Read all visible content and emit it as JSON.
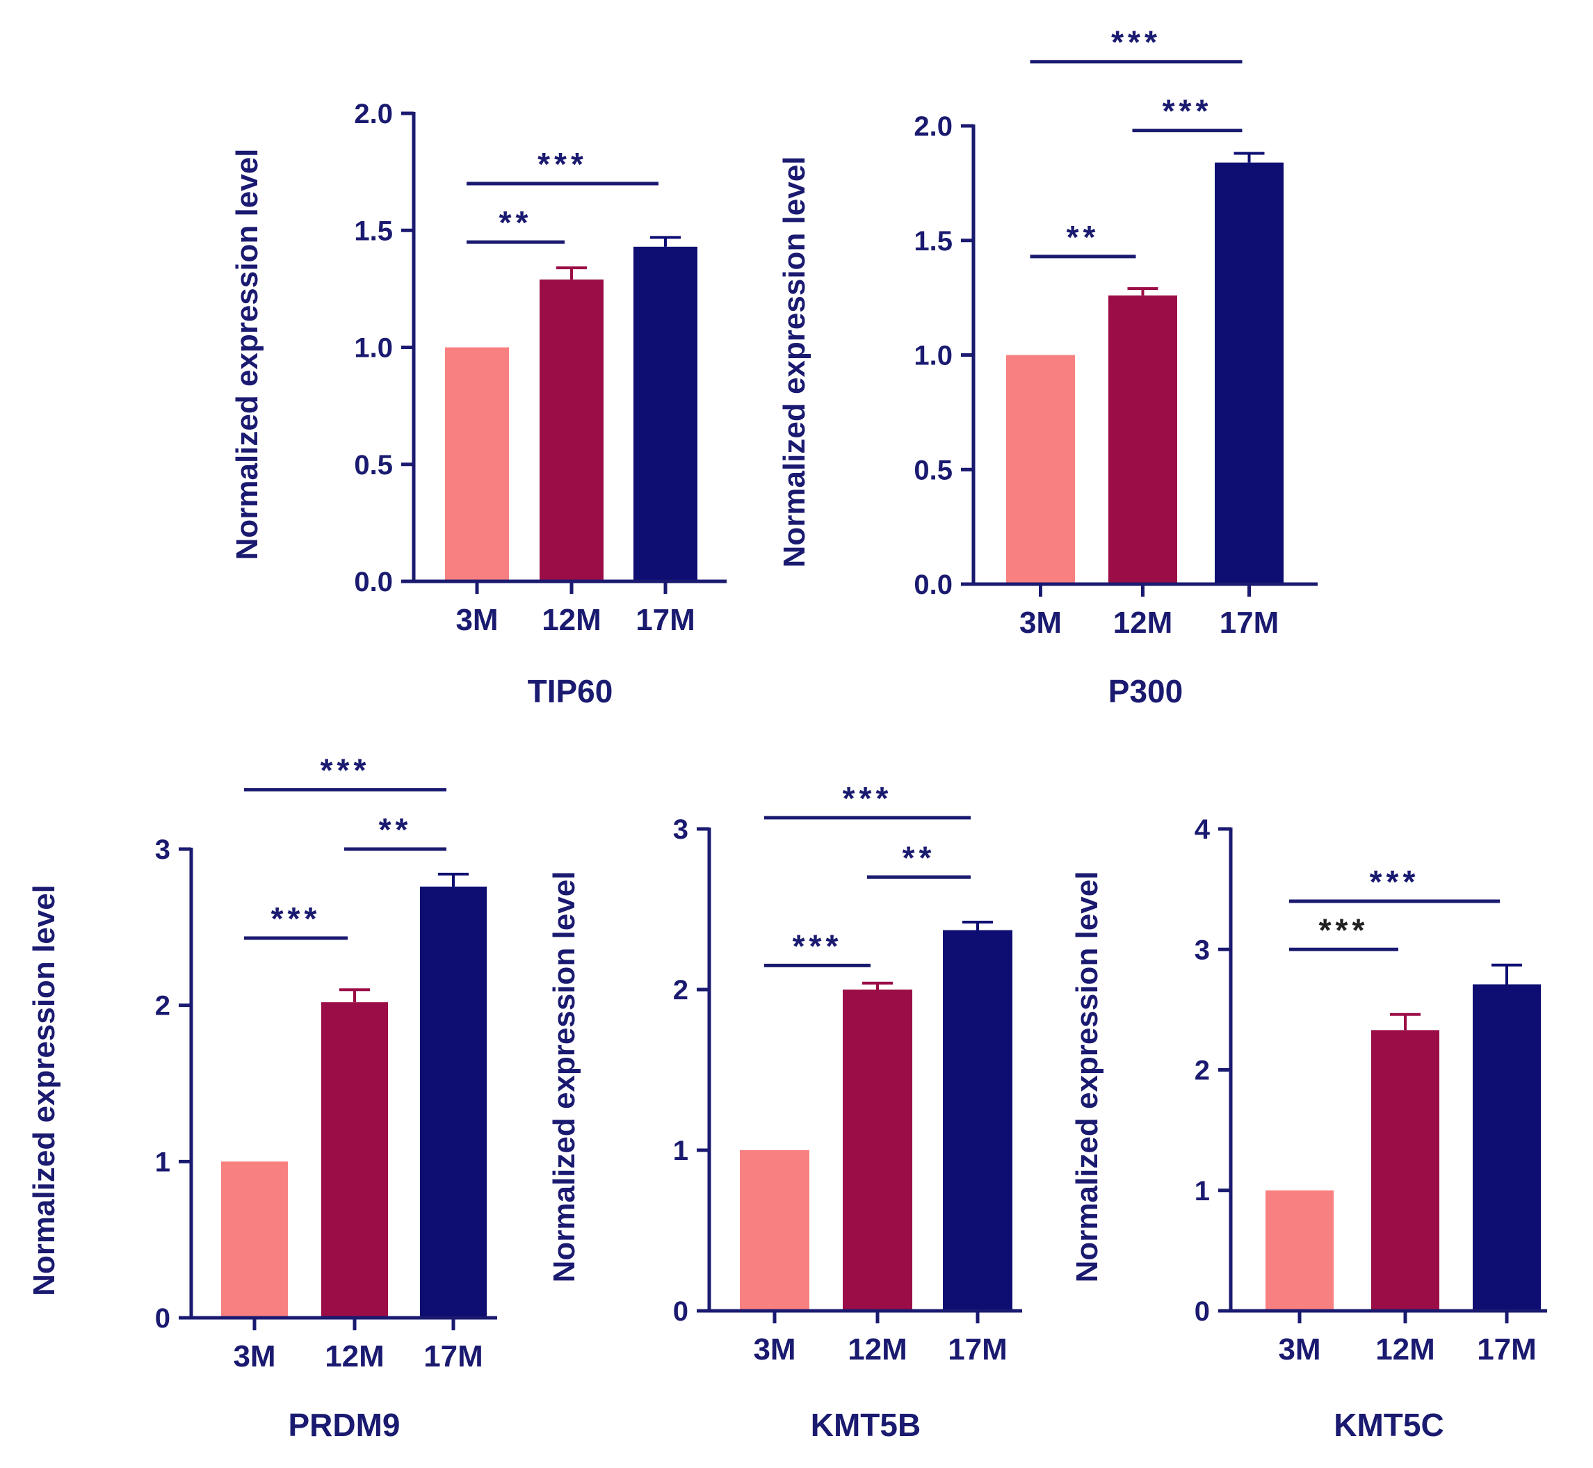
{
  "colors": {
    "axis": "#1a1a70",
    "bar_3M": "#f88080",
    "bar_12M": "#9b0d46",
    "bar_17M": "#0d0d72",
    "sig_line": "#1a1a70",
    "sig_text": "#1a1a70",
    "sig_text_dark": "#222222"
  },
  "chart_data": [
    {
      "type": "bar",
      "title": "TIP60",
      "ylabel": "Normalized expression level",
      "categories": [
        "3M",
        "12M",
        "17M"
      ],
      "values": [
        1.0,
        1.29,
        1.43
      ],
      "errors": [
        0,
        0.05,
        0.04
      ],
      "ylim": [
        0,
        2.0
      ],
      "yticks": [
        "0.0",
        "0.5",
        "1.0",
        "1.5",
        "2.0"
      ],
      "significance": [
        {
          "from": "3M",
          "to": "12M",
          "label": "**",
          "y": 1.45
        },
        {
          "from": "3M",
          "to": "17M",
          "label": "***",
          "y": 1.7
        }
      ]
    },
    {
      "type": "bar",
      "title": "P300",
      "ylabel": "Normalized expression level",
      "categories": [
        "3M",
        "12M",
        "17M"
      ],
      "values": [
        1.0,
        1.26,
        1.84
      ],
      "errors": [
        0,
        0.03,
        0.04
      ],
      "ylim": [
        0,
        2.0
      ],
      "yticks": [
        "0.0",
        "0.5",
        "1.0",
        "1.5",
        "2.0"
      ],
      "significance": [
        {
          "from": "3M",
          "to": "12M",
          "label": "**",
          "y": 1.43
        },
        {
          "from": "12M",
          "to": "17M",
          "label": "***",
          "y": 1.98
        },
        {
          "from": "3M",
          "to": "17M",
          "label": "***",
          "y": 2.28
        }
      ]
    },
    {
      "type": "bar",
      "title": "PRDM9",
      "ylabel": "Normalized expression level",
      "categories": [
        "3M",
        "12M",
        "17M"
      ],
      "values": [
        1.0,
        2.02,
        2.76
      ],
      "errors": [
        0,
        0.08,
        0.08
      ],
      "ylim": [
        0,
        3
      ],
      "yticks": [
        "0",
        "1",
        "2",
        "3"
      ],
      "significance": [
        {
          "from": "3M",
          "to": "12M",
          "label": "***",
          "y": 2.43
        },
        {
          "from": "12M",
          "to": "17M",
          "label": "**",
          "y": 3.0
        },
        {
          "from": "3M",
          "to": "17M",
          "label": "***",
          "y": 3.38
        }
      ]
    },
    {
      "type": "bar",
      "title": "KMT5B",
      "ylabel": "Normalized expression level",
      "categories": [
        "3M",
        "12M",
        "17M"
      ],
      "values": [
        1.0,
        2.0,
        2.37
      ],
      "errors": [
        0,
        0.04,
        0.05
      ],
      "ylim": [
        0,
        3
      ],
      "yticks": [
        "0",
        "1",
        "2",
        "3"
      ],
      "significance": [
        {
          "from": "3M",
          "to": "12M",
          "label": "***",
          "y": 2.15
        },
        {
          "from": "12M",
          "to": "17M",
          "label": "**",
          "y": 2.7
        },
        {
          "from": "3M",
          "to": "17M",
          "label": "***",
          "y": 3.07
        }
      ]
    },
    {
      "type": "bar",
      "title": "KMT5C",
      "ylabel": "Normalized expression level",
      "categories": [
        "3M",
        "12M",
        "17M"
      ],
      "values": [
        1.0,
        2.33,
        2.71
      ],
      "errors": [
        0,
        0.13,
        0.16
      ],
      "ylim": [
        0,
        4
      ],
      "yticks": [
        "0",
        "1",
        "2",
        "3",
        "4"
      ],
      "significance": [
        {
          "from": "3M",
          "to": "12M",
          "label": "***",
          "y": 3.0
        },
        {
          "from": "3M",
          "to": "17M",
          "label": "***",
          "y": 3.4
        }
      ]
    }
  ]
}
